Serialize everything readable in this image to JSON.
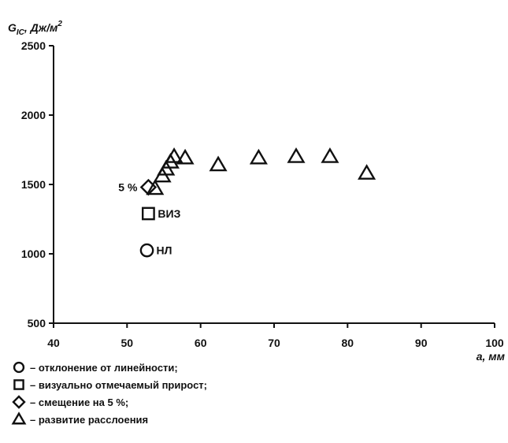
{
  "chart_data": {
    "type": "scatter",
    "ylabel": "G",
    "ylabel_subscript": "IC",
    "ylabel_unit": ", Дж/м",
    "ylabel_sup": "2",
    "xlabel": "a, мм",
    "xlim": [
      40,
      100
    ],
    "ylim": [
      500,
      2500
    ],
    "xticks": [
      "40",
      "50",
      "60",
      "70",
      "80",
      "90",
      "100"
    ],
    "yticks": [
      "500",
      "1000",
      "1500",
      "2000",
      "2500"
    ],
    "grid": false,
    "series": [
      {
        "marker": "circle",
        "legend": "– отклонение от линейности;",
        "points": [
          {
            "x": 52.7,
            "y": 1025
          }
        ],
        "point_label": "НЛ"
      },
      {
        "marker": "square",
        "legend": "– визуально отмечаемый прирост;",
        "points": [
          {
            "x": 52.9,
            "y": 1290
          }
        ],
        "point_label": "ВИЗ"
      },
      {
        "marker": "diamond",
        "legend": "– смещение на 5 %;",
        "points": [
          {
            "x": 52.9,
            "y": 1480
          }
        ],
        "point_label": "5 %"
      },
      {
        "marker": "triangle",
        "legend": "– развитие расслоения",
        "points": [
          {
            "x": 53.8,
            "y": 1470
          },
          {
            "x": 54.8,
            "y": 1560
          },
          {
            "x": 55.3,
            "y": 1610
          },
          {
            "x": 55.9,
            "y": 1660
          },
          {
            "x": 56.4,
            "y": 1700
          },
          {
            "x": 57.9,
            "y": 1690
          },
          {
            "x": 62.4,
            "y": 1640
          },
          {
            "x": 67.9,
            "y": 1690
          },
          {
            "x": 73.0,
            "y": 1700
          },
          {
            "x": 77.6,
            "y": 1700
          },
          {
            "x": 82.6,
            "y": 1580
          }
        ]
      }
    ]
  }
}
